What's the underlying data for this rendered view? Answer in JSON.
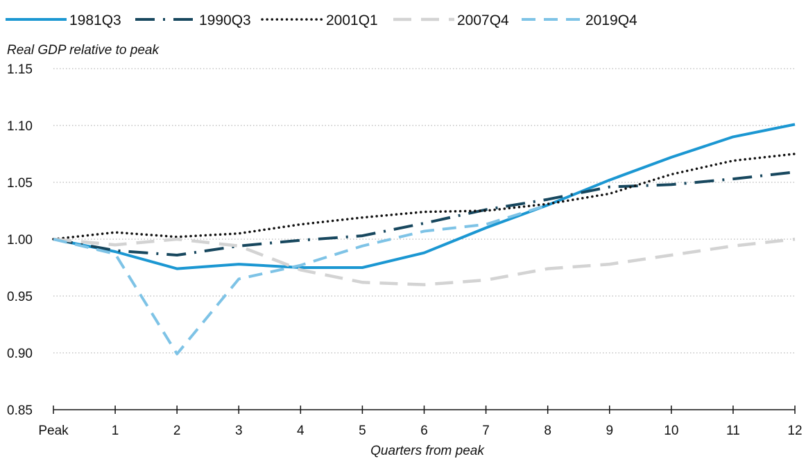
{
  "chart_data": {
    "type": "line",
    "ylabel": "Real GDP relative to peak",
    "xlabel": "Quarters from peak",
    "x": [
      0,
      1,
      2,
      3,
      4,
      5,
      6,
      7,
      8,
      9,
      10,
      11,
      12
    ],
    "xtick_labels": [
      "Peak",
      "1",
      "2",
      "3",
      "4",
      "5",
      "6",
      "7",
      "8",
      "9",
      "10",
      "11",
      "12"
    ],
    "xlim": [
      0,
      12
    ],
    "ylim": [
      0.85,
      1.15
    ],
    "yticks": [
      0.85,
      0.9,
      0.95,
      1.0,
      1.05,
      1.1,
      1.15
    ],
    "ytick_labels": [
      "0.85",
      "0.90",
      "0.95",
      "1.00",
      "1.05",
      "1.10",
      "1.15"
    ],
    "grid": "horizontal dotted",
    "legend_position": "top",
    "series": [
      {
        "name": "1981Q3",
        "color": "#1b97d2",
        "style": "solid",
        "values": [
          1.0,
          0.989,
          0.974,
          0.978,
          0.975,
          0.975,
          0.988,
          1.01,
          1.03,
          1.052,
          1.072,
          1.09,
          1.101
        ]
      },
      {
        "name": "1990Q3",
        "color": "#17475e",
        "style": "dash-dot",
        "values": [
          1.0,
          0.99,
          0.986,
          0.994,
          0.999,
          1.003,
          1.014,
          1.026,
          1.035,
          1.046,
          1.048,
          1.053,
          1.059
        ]
      },
      {
        "name": "2001Q1",
        "color": "#111111",
        "style": "dotted",
        "values": [
          1.0,
          1.006,
          1.002,
          1.005,
          1.013,
          1.019,
          1.024,
          1.025,
          1.031,
          1.04,
          1.057,
          1.069,
          1.075
        ]
      },
      {
        "name": "2007Q4",
        "color": "#d3d3d3",
        "style": "long-dash",
        "values": [
          1.0,
          0.995,
          1.0,
          0.994,
          0.973,
          0.962,
          0.96,
          0.964,
          0.974,
          0.978,
          0.986,
          0.994,
          1.0
        ]
      },
      {
        "name": "2019Q4",
        "color": "#7ec3e6",
        "style": "dash",
        "values": [
          1.0,
          0.987,
          0.899,
          0.965,
          0.977,
          0.994,
          1.007,
          1.013,
          1.03,
          null,
          null,
          null,
          null
        ]
      }
    ]
  }
}
